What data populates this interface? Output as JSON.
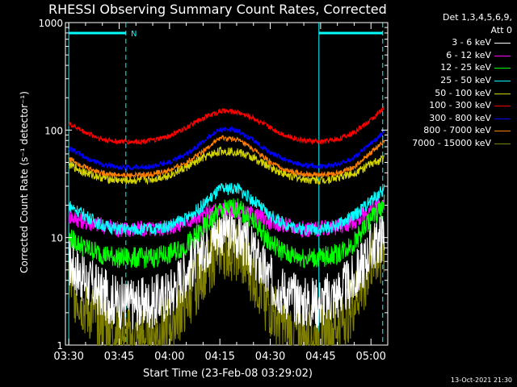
{
  "chart_data": {
    "type": "line",
    "title": "RHESSI Observing Summary Count Rates, Corrected",
    "xlabel": "Start Time (23-Feb-08 03:29:02)",
    "ylabel": "Corrected Count Rate (s⁻¹ detector⁻¹)",
    "y_scale": "log",
    "ylim": [
      1,
      1000
    ],
    "y_ticks": [
      1,
      10,
      100,
      1000
    ],
    "y_tick_labels": [
      "1",
      "10",
      "100",
      "1000"
    ],
    "x_range_minutes": [
      -1,
      95
    ],
    "x_ticks_minutes": [
      0,
      15,
      30,
      45,
      60,
      75,
      90
    ],
    "x_tick_labels": [
      "03:30",
      "03:45",
      "04:00",
      "04:15",
      "04:30",
      "04:45",
      "05:00"
    ],
    "legend_header": [
      "Det 1,3,4,5,6,9,",
      "Att 0"
    ],
    "series": [
      {
        "name": "3 - 6 keV",
        "color": "#ffffff",
        "x": [
          0,
          5,
          10,
          15,
          20,
          25,
          30,
          35,
          40,
          45,
          50,
          55,
          60,
          65,
          70,
          75,
          80,
          85,
          90,
          94
        ],
        "values": [
          6,
          4,
          3,
          2.5,
          2.4,
          2.5,
          3,
          5,
          8,
          12,
          11,
          7,
          4,
          3,
          2.5,
          2.5,
          3,
          4,
          8,
          11
        ],
        "noise": 0.25
      },
      {
        "name": "6 - 12 keV",
        "color": "#ff00ff",
        "x": [
          0,
          5,
          10,
          15,
          20,
          25,
          30,
          35,
          40,
          45,
          50,
          55,
          60,
          65,
          70,
          75,
          80,
          85,
          90,
          94
        ],
        "values": [
          16,
          14,
          13,
          12,
          12,
          12,
          12.5,
          14,
          16,
          19,
          18,
          16,
          14,
          13,
          12,
          12,
          12.5,
          14,
          18,
          21
        ],
        "noise": 0.08
      },
      {
        "name": "12 - 25 keV",
        "color": "#00ff00",
        "x": [
          0,
          5,
          10,
          15,
          20,
          25,
          30,
          35,
          40,
          45,
          50,
          55,
          60,
          65,
          70,
          75,
          80,
          85,
          90,
          94
        ],
        "values": [
          10,
          8,
          7,
          6.5,
          6.5,
          6.5,
          7,
          8.5,
          12,
          18,
          19,
          14,
          9,
          7,
          6.5,
          6.5,
          7,
          9,
          15,
          20
        ],
        "noise": 0.1
      },
      {
        "name": "25 - 50 keV",
        "color": "#00ffff",
        "x": [
          0,
          5,
          10,
          15,
          20,
          25,
          30,
          35,
          40,
          45,
          50,
          55,
          60,
          65,
          70,
          75,
          80,
          85,
          90,
          94
        ],
        "values": [
          20,
          16,
          13,
          12,
          12,
          12,
          13,
          15,
          20,
          28,
          29,
          22,
          16,
          13,
          12,
          12,
          13,
          16,
          22,
          28
        ],
        "noise": 0.06
      },
      {
        "name": "50 - 100 keV",
        "color": "#d4d400",
        "x": [
          0,
          5,
          10,
          15,
          20,
          25,
          30,
          35,
          40,
          45,
          50,
          55,
          60,
          65,
          70,
          75,
          80,
          85,
          90,
          94
        ],
        "values": [
          48,
          40,
          36,
          34,
          34,
          35,
          38,
          45,
          55,
          64,
          63,
          55,
          45,
          38,
          35,
          34,
          36,
          40,
          48,
          55
        ],
        "noise": 0.04
      },
      {
        "name": "100 - 300 keV",
        "color": "#ff0000",
        "x": [
          0,
          5,
          10,
          15,
          20,
          25,
          30,
          35,
          40,
          45,
          50,
          55,
          60,
          65,
          70,
          75,
          80,
          85,
          90,
          94
        ],
        "values": [
          115,
          95,
          82,
          78,
          78,
          80,
          88,
          105,
          130,
          150,
          148,
          130,
          105,
          88,
          80,
          78,
          82,
          95,
          125,
          160
        ],
        "noise": 0.025
      },
      {
        "name": "300 - 800 keV",
        "color": "#0000ff",
        "x": [
          0,
          5,
          10,
          15,
          20,
          25,
          30,
          35,
          40,
          45,
          50,
          55,
          60,
          65,
          70,
          75,
          80,
          85,
          90,
          94
        ],
        "values": [
          68,
          55,
          48,
          45,
          45,
          46,
          50,
          60,
          78,
          102,
          100,
          80,
          62,
          52,
          47,
          46,
          48,
          55,
          75,
          96
        ],
        "noise": 0.025
      },
      {
        "name": "800 - 7000 keV",
        "color": "#ff8000",
        "x": [
          0,
          5,
          10,
          15,
          20,
          25,
          30,
          35,
          40,
          45,
          50,
          55,
          60,
          65,
          70,
          75,
          80,
          85,
          90,
          94
        ],
        "values": [
          55,
          45,
          40,
          38,
          38,
          39,
          42,
          50,
          64,
          84,
          82,
          66,
          50,
          42,
          39,
          38,
          40,
          45,
          62,
          80
        ],
        "noise": 0.025
      },
      {
        "name": "7000 - 15000 keV",
        "color": "#808000",
        "x": [
          0,
          5,
          10,
          15,
          20,
          25,
          30,
          35,
          40,
          45,
          50,
          55,
          60,
          65,
          70,
          75,
          80,
          85,
          90,
          94
        ],
        "values": [
          4,
          2.2,
          1.6,
          1.2,
          1.1,
          1.2,
          1.5,
          2.5,
          5,
          8,
          7.5,
          4.5,
          2.2,
          1.4,
          1.2,
          1.2,
          1.5,
          2.5,
          6,
          8
        ],
        "noise": 0.3
      }
    ],
    "annotations": [
      {
        "text": "N",
        "x_minutes": 18.5,
        "color": "#00ffff"
      }
    ],
    "observing_lines": {
      "color": "#00ffff",
      "solid_x_minutes": [
        0,
        74.5
      ],
      "dashed_x_minutes": [
        17,
        93.5
      ],
      "top_bars": [
        [
          0,
          17
        ],
        [
          74.5,
          93.5
        ]
      ]
    }
  },
  "timestamp": "13-Oct-2021 21:30"
}
